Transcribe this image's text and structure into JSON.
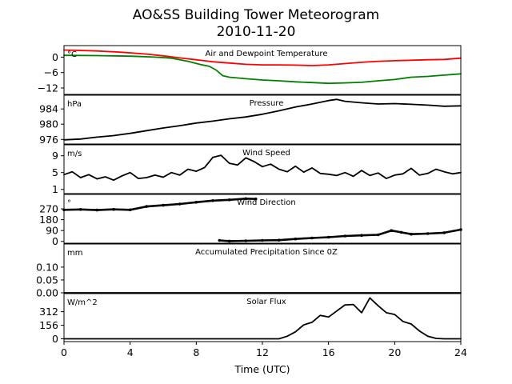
{
  "figure": {
    "title_line1": "AO&SS Building Tower Meteorogram",
    "title_line2": "2010-11-20",
    "xlabel": "Time (UTC)"
  },
  "chart_data": {
    "type": "line",
    "x_axis": {
      "label": "Time (UTC)",
      "range": [
        0,
        24
      ],
      "ticks": [
        0,
        4,
        8,
        12,
        16,
        20,
        24
      ],
      "tick_labels": [
        "0",
        "4",
        "8",
        "12",
        "16",
        "20",
        "24"
      ]
    },
    "panels": [
      {
        "id": "temp",
        "title": "Air and Dewpoint Temperature",
        "unit": "°C",
        "ylim": [
          -14.5,
          4.5
        ],
        "yticks": [
          0,
          -6,
          -12
        ],
        "ytick_labels": [
          "0",
          "−6",
          "−12"
        ],
        "series": [
          {
            "color": "#ff0000",
            "marker": false,
            "points": [
              [
                0,
                2.8
              ],
              [
                2,
                2.4
              ],
              [
                3.5,
                1.9
              ],
              [
                5,
                1.2
              ],
              [
                6,
                0.5
              ],
              [
                7,
                -0.3
              ],
              [
                8,
                -1.0
              ],
              [
                9,
                -1.8
              ],
              [
                10,
                -2.3
              ],
              [
                11,
                -2.8
              ],
              [
                12,
                -3.0
              ],
              [
                13,
                -3.0
              ],
              [
                14,
                -3.1
              ],
              [
                15,
                -3.3
              ],
              [
                16,
                -3.0
              ],
              [
                17,
                -2.5
              ],
              [
                18,
                -2.0
              ],
              [
                19,
                -1.6
              ],
              [
                20,
                -1.4
              ],
              [
                21,
                -1.2
              ],
              [
                22,
                -1.0
              ],
              [
                23,
                -0.9
              ],
              [
                24,
                -0.4
              ]
            ]
          },
          {
            "color": "#008000",
            "marker": false,
            "points": [
              [
                0,
                0.7
              ],
              [
                2,
                0.6
              ],
              [
                4,
                0.4
              ],
              [
                5.5,
                0.0
              ],
              [
                6.5,
                -0.4
              ],
              [
                7.5,
                -1.6
              ],
              [
                8.2,
                -2.8
              ],
              [
                8.8,
                -3.6
              ],
              [
                9.2,
                -5.0
              ],
              [
                9.6,
                -7.2
              ],
              [
                10,
                -7.8
              ],
              [
                11,
                -8.4
              ],
              [
                12,
                -8.9
              ],
              [
                13,
                -9.2
              ],
              [
                14,
                -9.6
              ],
              [
                15,
                -9.9
              ],
              [
                16,
                -10.2
              ],
              [
                17,
                -10.0
              ],
              [
                18,
                -9.8
              ],
              [
                19,
                -9.2
              ],
              [
                20,
                -8.7
              ],
              [
                21,
                -7.8
              ],
              [
                22,
                -7.5
              ],
              [
                23,
                -7.0
              ],
              [
                24,
                -6.5
              ]
            ]
          }
        ]
      },
      {
        "id": "pressure",
        "title": "Pressure",
        "unit": "hPa",
        "ylim": [
          974.8,
          987.6
        ],
        "yticks": [
          976,
          980,
          984
        ],
        "ytick_labels": [
          "976",
          "980",
          "984"
        ],
        "series": [
          {
            "color": "#000000",
            "marker": false,
            "points": [
              [
                0,
                975.9
              ],
              [
                1,
                976.1
              ],
              [
                2,
                976.6
              ],
              [
                3,
                977.0
              ],
              [
                4,
                977.6
              ],
              [
                5,
                978.3
              ],
              [
                6,
                979.0
              ],
              [
                7,
                979.6
              ],
              [
                8,
                980.3
              ],
              [
                9,
                980.8
              ],
              [
                10,
                981.4
              ],
              [
                11,
                981.9
              ],
              [
                12,
                982.6
              ],
              [
                13,
                983.5
              ],
              [
                14,
                984.5
              ],
              [
                15,
                985.3
              ],
              [
                16,
                986.2
              ],
              [
                16.5,
                986.5
              ],
              [
                17,
                986.0
              ],
              [
                18,
                985.6
              ],
              [
                19,
                985.3
              ],
              [
                20,
                985.4
              ],
              [
                21,
                985.2
              ],
              [
                22,
                985.0
              ],
              [
                23,
                984.7
              ],
              [
                24,
                984.8
              ]
            ]
          }
        ]
      },
      {
        "id": "wind_speed",
        "title": "Wind Speed",
        "unit": "m/s",
        "ylim": [
          0,
          11.6
        ],
        "yticks": [
          1,
          5,
          9
        ],
        "ytick_labels": [
          "1",
          "5",
          "9"
        ],
        "series": [
          {
            "color": "#000000",
            "marker": false,
            "points": [
              [
                0,
                4.5
              ],
              [
                0.5,
                5.2
              ],
              [
                1,
                3.8
              ],
              [
                1.5,
                4.5
              ],
              [
                2,
                3.5
              ],
              [
                2.5,
                4.0
              ],
              [
                3,
                3.2
              ],
              [
                3.5,
                4.2
              ],
              [
                4,
                5.0
              ],
              [
                4.5,
                3.6
              ],
              [
                5,
                3.8
              ],
              [
                5.5,
                4.4
              ],
              [
                6,
                3.9
              ],
              [
                6.5,
                5.0
              ],
              [
                7,
                4.4
              ],
              [
                7.5,
                5.8
              ],
              [
                8,
                5.3
              ],
              [
                8.5,
                6.2
              ],
              [
                9,
                8.6
              ],
              [
                9.5,
                9.1
              ],
              [
                10,
                7.2
              ],
              [
                10.5,
                6.8
              ],
              [
                11,
                8.5
              ],
              [
                11.5,
                7.6
              ],
              [
                12,
                6.4
              ],
              [
                12.5,
                7.0
              ],
              [
                13,
                5.8
              ],
              [
                13.5,
                5.2
              ],
              [
                14,
                6.5
              ],
              [
                14.5,
                5.1
              ],
              [
                15,
                6.1
              ],
              [
                15.5,
                4.8
              ],
              [
                16,
                4.6
              ],
              [
                16.5,
                4.3
              ],
              [
                17,
                5.0
              ],
              [
                17.5,
                4.1
              ],
              [
                18,
                5.5
              ],
              [
                18.5,
                4.3
              ],
              [
                19,
                4.9
              ],
              [
                19.5,
                3.6
              ],
              [
                20,
                4.4
              ],
              [
                20.5,
                4.7
              ],
              [
                21,
                6.0
              ],
              [
                21.5,
                4.4
              ],
              [
                22,
                4.8
              ],
              [
                22.5,
                5.8
              ],
              [
                23,
                5.2
              ],
              [
                23.5,
                4.7
              ],
              [
                24,
                5.0
              ]
            ]
          }
        ]
      },
      {
        "id": "wind_dir",
        "title": "Wind Direction",
        "unit": "°",
        "ylim": [
          -15,
          390
        ],
        "yticks": [
          0,
          90,
          180,
          270
        ],
        "ytick_labels": [
          "0",
          "90",
          "180",
          "270"
        ],
        "series": [
          {
            "color": "#000000",
            "marker": true,
            "points": [
              [
                0,
                262
              ],
              [
                1,
                265
              ],
              [
                2,
                260
              ],
              [
                3,
                266
              ],
              [
                4,
                262
              ],
              [
                5,
                290
              ],
              [
                6,
                300
              ],
              [
                7,
                310
              ],
              [
                8,
                325
              ],
              [
                9,
                338
              ],
              [
                10,
                345
              ],
              [
                11,
                355
              ],
              [
                11.6,
                352
              ]
            ]
          },
          {
            "color": "#000000",
            "marker": true,
            "points": [
              [
                9.4,
                8
              ],
              [
                10,
                2
              ],
              [
                11,
                5
              ],
              [
                12,
                8
              ],
              [
                13,
                10
              ],
              [
                14,
                20
              ],
              [
                15,
                28
              ],
              [
                16,
                35
              ],
              [
                17,
                45
              ],
              [
                18,
                50
              ],
              [
                19,
                55
              ],
              [
                19.8,
                90
              ],
              [
                20.4,
                75
              ],
              [
                21,
                60
              ],
              [
                22,
                65
              ],
              [
                23,
                72
              ],
              [
                24,
                98
              ]
            ]
          }
        ]
      },
      {
        "id": "precip",
        "title": "Accumulated Precipitation Since 0Z",
        "unit": "mm",
        "ylim": [
          0,
          0.19
        ],
        "yticks": [
          0.0,
          0.05,
          0.1
        ],
        "ytick_labels": [
          "0.00",
          "0.05",
          "0.10"
        ],
        "series": [
          {
            "color": "#000000",
            "marker": false,
            "points": [
              [
                0,
                0
              ],
              [
                24,
                0
              ]
            ]
          }
        ]
      },
      {
        "id": "solar",
        "title": "Solar Flux",
        "unit": "W/m^2",
        "ylim": [
          -32,
          520
        ],
        "yticks": [
          0,
          156,
          312
        ],
        "ytick_labels": [
          "0",
          "156",
          "312"
        ],
        "series": [
          {
            "color": "#000000",
            "marker": false,
            "points": [
              [
                0,
                0
              ],
              [
                13,
                0
              ],
              [
                13.5,
                30
              ],
              [
                14,
                80
              ],
              [
                14.5,
                160
              ],
              [
                15,
                190
              ],
              [
                15.5,
                270
              ],
              [
                16,
                250
              ],
              [
                16.5,
                320
              ],
              [
                17,
                390
              ],
              [
                17.5,
                395
              ],
              [
                18,
                300
              ],
              [
                18.5,
                470
              ],
              [
                19,
                380
              ],
              [
                19.5,
                300
              ],
              [
                20,
                280
              ],
              [
                20.5,
                200
              ],
              [
                21,
                170
              ],
              [
                21.5,
                90
              ],
              [
                22,
                30
              ],
              [
                22.5,
                5
              ],
              [
                23,
                0
              ],
              [
                24,
                0
              ]
            ]
          }
        ]
      }
    ]
  }
}
